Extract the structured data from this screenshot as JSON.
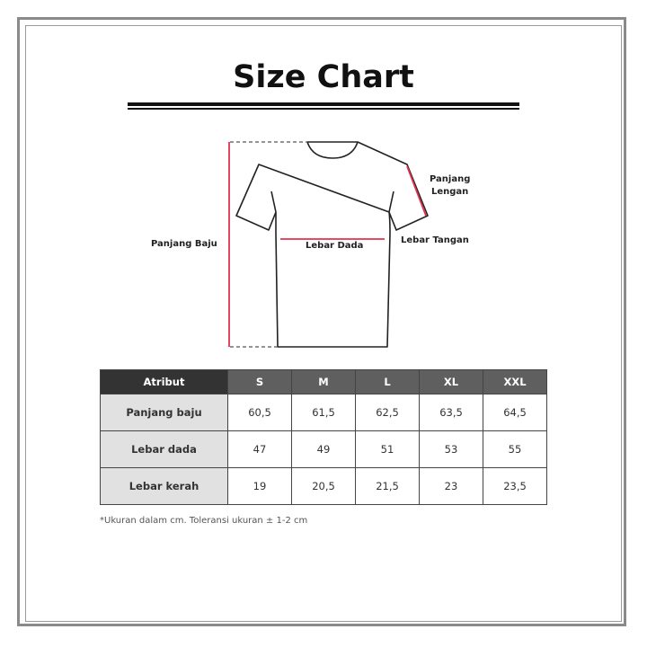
{
  "title": "Size Chart",
  "diagram": {
    "labels": {
      "panjang_baju": "Panjang Baju",
      "panjang_lengan_1": "Panjang",
      "panjang_lengan_2": "Lengan",
      "lebar_dada": "Lebar Dada",
      "lebar_tangan": "Lebar Tangan"
    },
    "measure_color": "#e0334f"
  },
  "table": {
    "headers": [
      "Atribut",
      "S",
      "M",
      "L",
      "XL",
      "XXL"
    ],
    "rows": [
      {
        "label": "Panjang baju",
        "values": [
          "60,5",
          "61,5",
          "62,5",
          "63,5",
          "64,5"
        ]
      },
      {
        "label": "Lebar dada",
        "values": [
          "47",
          "49",
          "51",
          "53",
          "55"
        ]
      },
      {
        "label": "Lebar kerah",
        "values": [
          "19",
          "20,5",
          "21,5",
          "23",
          "23,5"
        ]
      }
    ]
  },
  "note": "*Ukuran dalam cm. Toleransi ukuran ± 1-2 cm"
}
